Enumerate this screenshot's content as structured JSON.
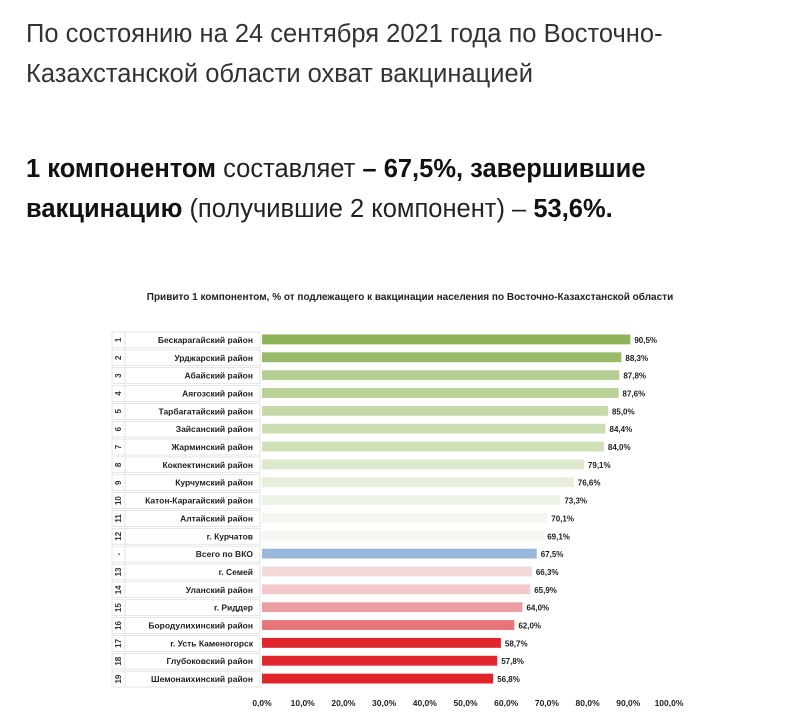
{
  "intro_text": "По состоянию на 24 сентября 2021 года по Восточно-Казахстанской области охват вакцинацией",
  "headline": {
    "part1": "1 компонентом",
    "part2": " составляет ",
    "part3": "– 67,5%, завершившие вакцинацию",
    "part4": " (получившие 2 компонент) – ",
    "part5": "53,6%."
  },
  "chart_data": {
    "type": "bar",
    "orientation": "horizontal",
    "title": "Привито 1 компонентом, % от подлежащего к вакцинации населения по Восточно-Казахстанской области",
    "xlim": [
      0,
      100
    ],
    "x_ticks": [
      "0,0%",
      "10,0%",
      "20,0%",
      "30,0%",
      "40,0%",
      "50,0%",
      "60,0%",
      "70,0%",
      "80,0%",
      "90,0%",
      "100,0%"
    ],
    "ranks": [
      "1",
      "2",
      "3",
      "4",
      "5",
      "6",
      "7",
      "8",
      "9",
      "10",
      "11",
      "12",
      "-",
      "13",
      "14",
      "15",
      "16",
      "17",
      "18",
      "19"
    ],
    "categories": [
      "Бескарагайский район",
      "Урджарский район",
      "Абайский район",
      "Аягозский район",
      "Тарбагатайский район",
      "Зайсанский район",
      "Жарминский район",
      "Кокпектинский район",
      "Курчумский район",
      "Катон-Карагайский район",
      "Алтайский район",
      "г. Курчатов",
      "Всего по ВКО",
      "г. Семей",
      "Уланский район",
      "г. Риддер",
      "Бородулихинский район",
      "г. Усть Каменогорск",
      "Глубоковский район",
      "Шемонаихинский район"
    ],
    "values": [
      90.5,
      88.3,
      87.8,
      87.6,
      85.0,
      84.4,
      84.0,
      79.1,
      76.6,
      73.3,
      70.1,
      69.1,
      67.5,
      66.3,
      65.9,
      64.0,
      62.0,
      58.7,
      57.8,
      56.8
    ],
    "value_labels": [
      "90,5%",
      "88,3%",
      "87,8%",
      "87,6%",
      "85,0%",
      "84,4%",
      "84,0%",
      "79,1%",
      "76,6%",
      "73,3%",
      "70,1%",
      "69,1%",
      "67,5%",
      "66,3%",
      "65,9%",
      "64,0%",
      "62,0%",
      "58,7%",
      "57,8%",
      "56,8%"
    ],
    "bar_colors": [
      "#8db25a",
      "#98bb6a",
      "#b5cf92",
      "#b8d196",
      "#c5d9a9",
      "#ccdeb2",
      "#d0e1b8",
      "#dde9cd",
      "#e7efdc",
      "#edf3e6",
      "#f2f6ee",
      "#f4f7f1",
      "#9ab7dc",
      "#f3d9da",
      "#f2c9cb",
      "#ec9fa3",
      "#e77478",
      "#e2252c",
      "#e1272d",
      "#e0262c"
    ]
  }
}
